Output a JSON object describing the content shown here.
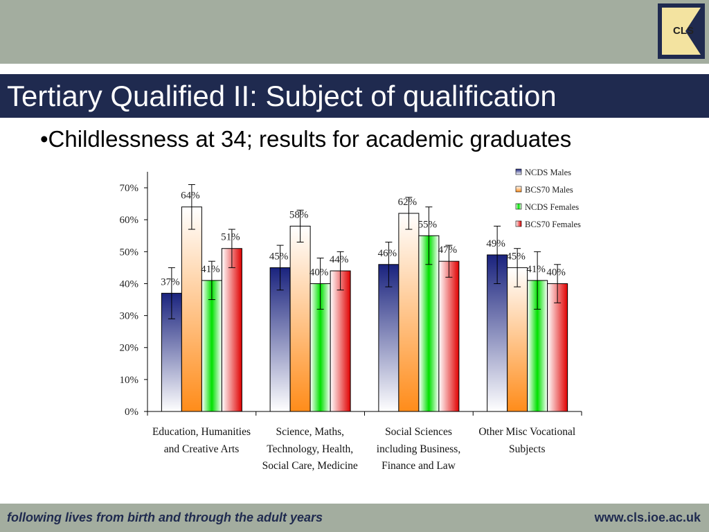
{
  "header": {
    "title": "Tertiary Qualified II: Subject of qualification",
    "bullet": "•Childlessness at 34; results for academic graduates",
    "logo": "CLS"
  },
  "footer": {
    "tagline": "following lives from birth and through the adult years",
    "url": "www.cls.ioe.ac.uk"
  },
  "chart_data": {
    "type": "bar",
    "categories": [
      "Education, Humanities and Creative Arts",
      "Science, Maths, Technology, Health, Social Care, Medicine",
      "Social Sciences including Business, Finance and Law",
      "Other Misc Vocational Subjects"
    ],
    "series": [
      {
        "name": "NCDS Males",
        "color": "#1a237e",
        "values": [
          37,
          45,
          46,
          49
        ],
        "value_labels": [
          "37%",
          "45%",
          "46%",
          "49%"
        ],
        "errors": [
          8,
          7,
          7,
          9
        ]
      },
      {
        "name": "BCS70 Males",
        "color": "#ff8c1a",
        "values": [
          64,
          58,
          62,
          45
        ],
        "value_labels": [
          "64%",
          "58%",
          "62%",
          "45%"
        ],
        "errors": [
          7,
          5,
          5,
          6
        ]
      },
      {
        "name": "NCDS Females",
        "color": "#00e000",
        "values": [
          41,
          40,
          55,
          41
        ],
        "value_labels": [
          "41%",
          "40%",
          "55%",
          "41%"
        ],
        "errors": [
          6,
          8,
          9,
          9
        ]
      },
      {
        "name": "BCS70 Females",
        "color": "#e00000",
        "values": [
          51,
          44,
          47,
          40
        ],
        "value_labels": [
          "51%",
          "44%",
          "47%",
          "40%"
        ],
        "errors": [
          6,
          6,
          5,
          6
        ]
      }
    ],
    "ylim": [
      0,
      75
    ],
    "yticks": [
      {
        "value": 0,
        "label": "0%"
      },
      {
        "value": 10,
        "label": "10%"
      },
      {
        "value": 20,
        "label": "20%"
      },
      {
        "value": 30,
        "label": "30%"
      },
      {
        "value": 40,
        "label": "40%"
      },
      {
        "value": 50,
        "label": "50%"
      },
      {
        "value": 60,
        "label": "60%"
      },
      {
        "value": 70,
        "label": "70%"
      }
    ],
    "legend": "top-right"
  }
}
